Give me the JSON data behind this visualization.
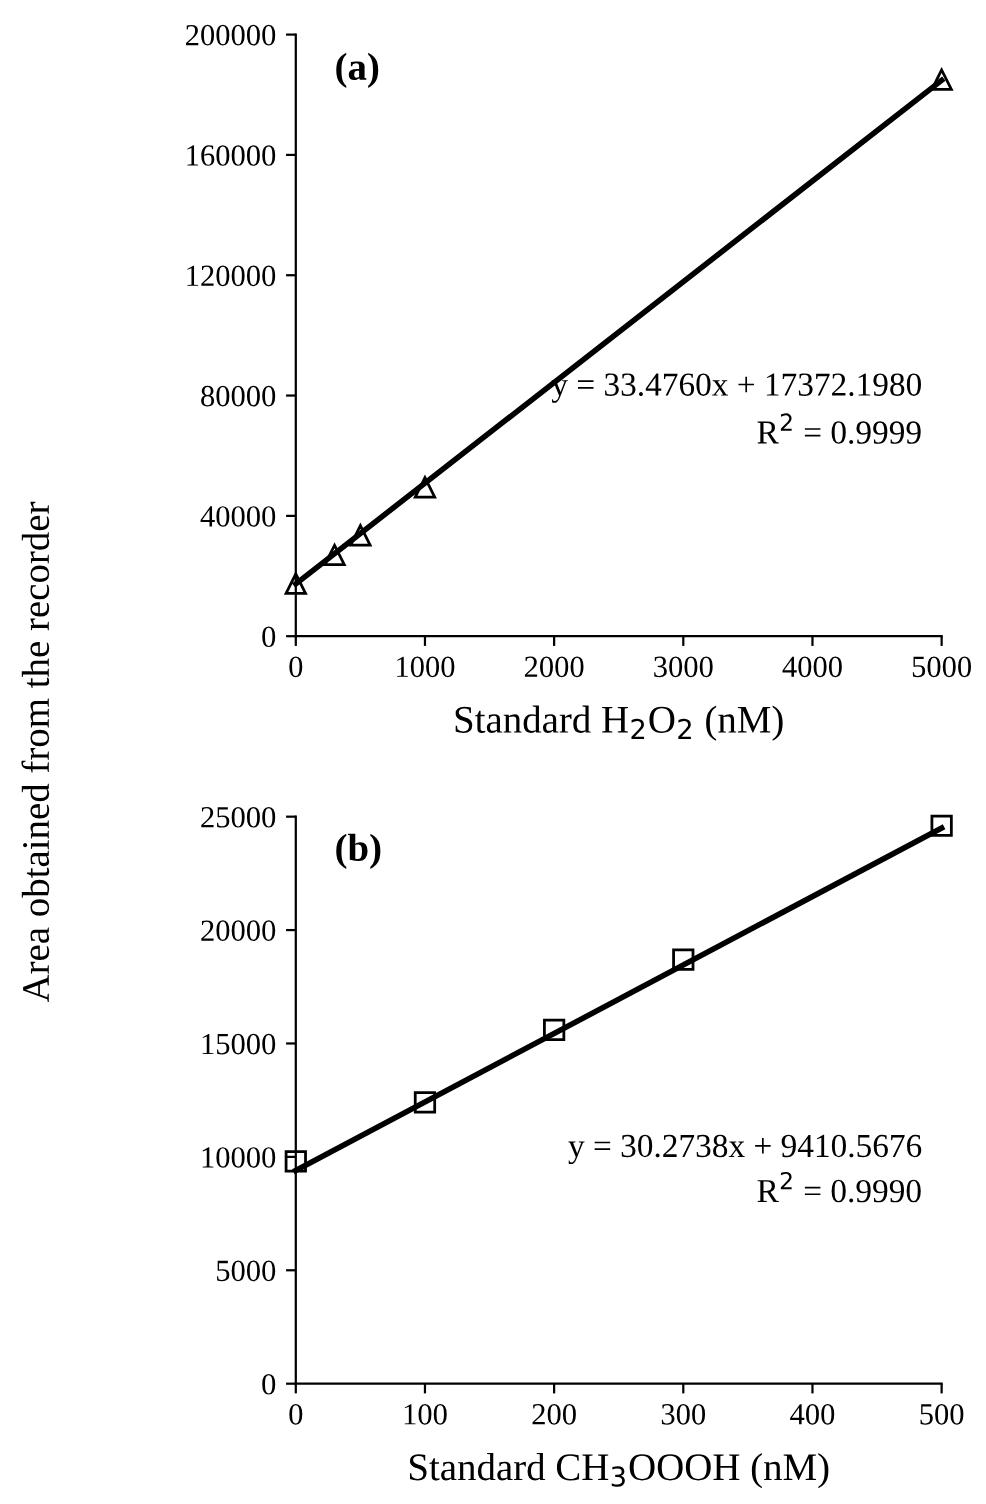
{
  "chart_data": [
    {
      "type": "scatter",
      "xlabel": "Standard H$_{2}$O$_{2}$ (nM)",
      "ylabel": "Area obtained from the recorder",
      "annotations": [
        "(a)",
        "y = 33.4760x + 17372.1980",
        "R$^{2}$ = 0.9999"
      ],
      "x": [
        0,
        300,
        500,
        1000,
        5000
      ],
      "series": [
        {
          "color": "#000000",
          "marker": "triangle",
          "values": [
            17500,
            27000,
            33500,
            49500,
            185000
          ]
        },
        {
          "type": "line",
          "color": "#000000",
          "x": [
            0,
            5000
          ],
          "values": [
            17400,
            184800
          ]
        }
      ],
      "xlim": [
        0,
        5000
      ],
      "xticks": [
        0,
        1000,
        2000,
        3000,
        4000,
        5000
      ],
      "ylim": [
        0,
        200000
      ],
      "yticks": [
        0,
        40000,
        80000,
        120000,
        160000,
        200000
      ],
      "grid": false,
      "legend": false
    },
    {
      "type": "scatter",
      "xlabel": "Standard CH$_{3}$OOOH (nM)",
      "annotations": [
        "(b)",
        "y = 30.2738x + 9410.5676",
        "R$^{2}$ = 0.9990"
      ],
      "x": [
        0,
        100,
        200,
        300,
        500
      ],
      "series": [
        {
          "color": "#000000",
          "marker": "square",
          "values": [
            9800,
            12400,
            15600,
            18700,
            24600
          ]
        },
        {
          "type": "line",
          "color": "#000000",
          "x": [
            0,
            500
          ],
          "values": [
            9400,
            24500
          ]
        }
      ],
      "xlim": [
        0,
        500
      ],
      "xticks": [
        0,
        100,
        200,
        300,
        400,
        500
      ],
      "ylim": [
        0,
        25000
      ],
      "yticks": [
        0,
        5000,
        10000,
        15000,
        20000,
        25000
      ],
      "grid": false,
      "legend": false
    }
  ]
}
